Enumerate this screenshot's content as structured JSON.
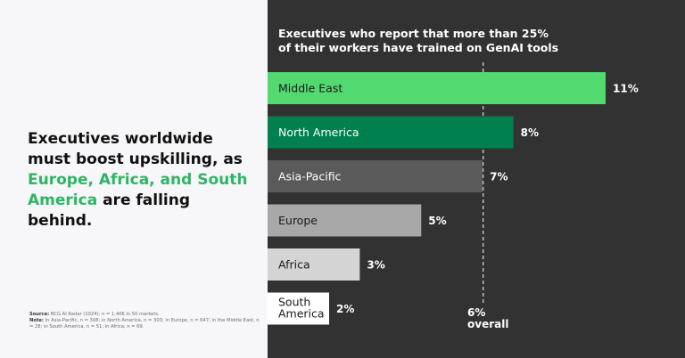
{
  "headline": {
    "part1": "Executives worldwide must boost upskilling, as ",
    "highlight": "Europe, Africa, and South America",
    "part2": " are falling behind."
  },
  "source": {
    "source_label": "Source:",
    "source_text": " BCG AI Radar (2024); n = 1,406 in 50 markets.",
    "note_label": "Note:",
    "note_text": " In Asia-Pacific, n = 308; in North America, n = 303; in Europe, n = 647; in the Middle East, n = 28; in South America, n = 51; in Africa, n = 69."
  },
  "chart_data": {
    "type": "bar",
    "orientation": "horizontal",
    "title": "Executives who report that more than 25% of their workers have trained on GenAI tools",
    "categories": [
      "Middle East",
      "North America",
      "Asia-Pacific",
      "Europe",
      "Africa",
      "South America"
    ],
    "values": [
      11,
      8,
      7,
      5,
      3,
      2
    ],
    "value_labels": [
      "11%",
      "8%",
      "7%",
      "5%",
      "3%",
      "2%"
    ],
    "colors": [
      "#52d970",
      "#01804f",
      "#5a5a5a",
      "#a8a8a8",
      "#d4d4d4",
      "#ffffff"
    ],
    "label_colors": [
      "#1a1a1a",
      "#ffffff",
      "#ffffff",
      "#1a1a1a",
      "#1a1a1a",
      "#1a1a1a"
    ],
    "reference_line": {
      "value": 6,
      "label_value": "6%",
      "label_text": "overall"
    }
  }
}
